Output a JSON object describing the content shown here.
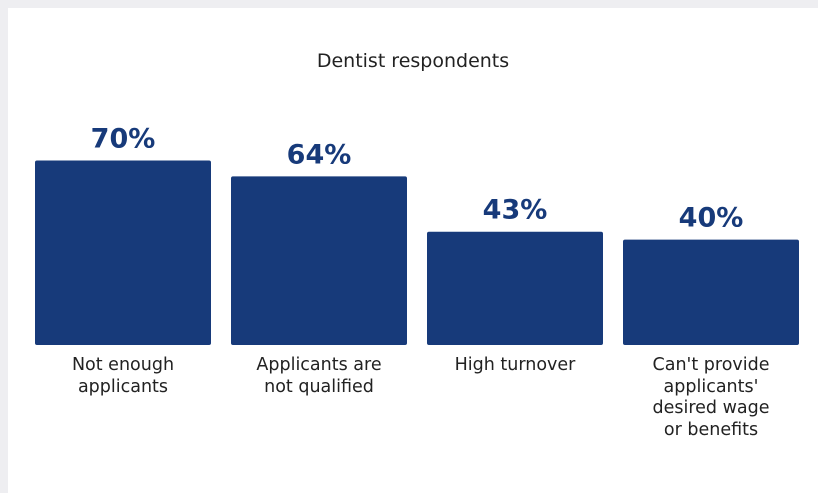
{
  "chart_data": {
    "type": "bar",
    "title": "Dentist respondents",
    "categories": [
      "Not enough\napplicants",
      "Applicants are\nnot qualified",
      "High turnover",
      "Can't provide\napplicants'\ndesired wage\nor benefits"
    ],
    "values": [
      70,
      64,
      43,
      40
    ],
    "value_labels": [
      "70%",
      "64%",
      "43%",
      "40%"
    ],
    "bar_color": "#173a7a",
    "label_color": "#173a7a",
    "grid": false
  }
}
